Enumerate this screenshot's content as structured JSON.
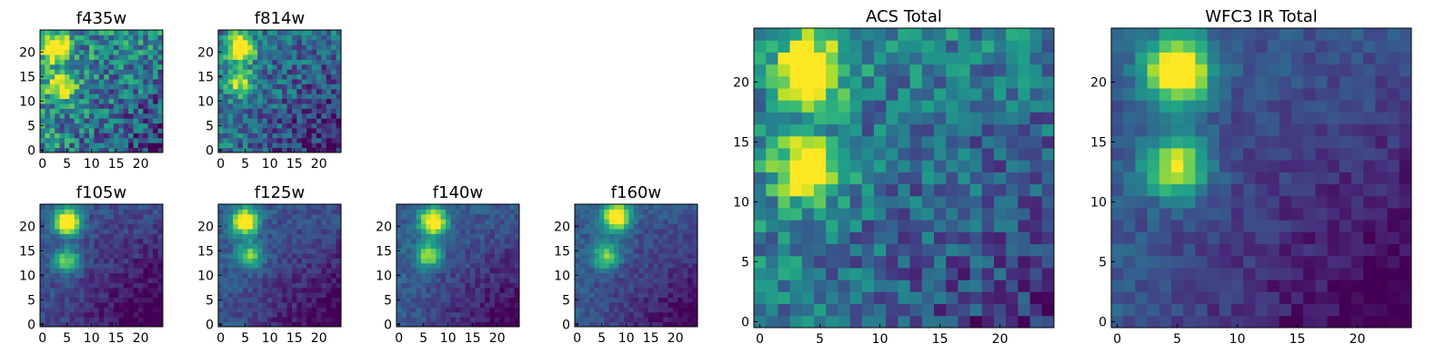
{
  "chart_data": [
    {
      "type": "heatmap",
      "title": "f435w",
      "xticks": [
        0,
        5,
        10,
        15,
        20
      ],
      "yticks": [
        0,
        5,
        10,
        15,
        20
      ],
      "xlim": [
        0,
        24
      ],
      "ylim": [
        0,
        24
      ],
      "colormap": "viridis",
      "peaks": [
        [
          3,
          21,
          0.9
        ],
        [
          4,
          13,
          0.6
        ]
      ],
      "background": 0.5,
      "noise": 0.55
    },
    {
      "type": "heatmap",
      "title": "f814w",
      "xticks": [
        0,
        5,
        10,
        15,
        20
      ],
      "yticks": [
        0,
        5,
        10,
        15,
        20
      ],
      "xlim": [
        0,
        24
      ],
      "ylim": [
        0,
        24
      ],
      "colormap": "viridis",
      "peaks": [
        [
          4,
          21,
          0.95
        ],
        [
          4,
          14,
          0.6
        ]
      ],
      "background": 0.4,
      "noise": 0.45
    },
    {
      "type": "heatmap",
      "title": "f105w",
      "xticks": [
        0,
        5,
        10,
        15,
        20
      ],
      "yticks": [
        0,
        5,
        10,
        15,
        20
      ],
      "xlim": [
        0,
        24
      ],
      "ylim": [
        0,
        24
      ],
      "colormap": "viridis",
      "peaks": [
        [
          5,
          21,
          1.0
        ],
        [
          5,
          13,
          0.6
        ]
      ],
      "background": 0.25,
      "noise": 0.18
    },
    {
      "type": "heatmap",
      "title": "f125w",
      "xticks": [
        0,
        5,
        10,
        15,
        20
      ],
      "yticks": [
        0,
        5,
        10,
        15,
        20
      ],
      "xlim": [
        0,
        24
      ],
      "ylim": [
        0,
        24
      ],
      "colormap": "viridis",
      "peaks": [
        [
          5,
          21,
          0.95
        ],
        [
          6,
          14,
          0.55
        ]
      ],
      "background": 0.28,
      "noise": 0.18
    },
    {
      "type": "heatmap",
      "title": "f140w",
      "xticks": [
        0,
        5,
        10,
        15,
        20
      ],
      "yticks": [
        0,
        5,
        10,
        15,
        20
      ],
      "xlim": [
        0,
        24
      ],
      "ylim": [
        0,
        24
      ],
      "colormap": "viridis",
      "peaks": [
        [
          7,
          21,
          0.95
        ],
        [
          6,
          14,
          0.6
        ]
      ],
      "background": 0.3,
      "noise": 0.18
    },
    {
      "type": "heatmap",
      "title": "f160w",
      "xticks": [
        0,
        5,
        10,
        15,
        20
      ],
      "yticks": [
        0,
        5,
        10,
        15,
        20
      ],
      "xlim": [
        0,
        24
      ],
      "ylim": [
        0,
        24
      ],
      "colormap": "viridis",
      "peaks": [
        [
          8,
          22,
          1.0
        ],
        [
          6,
          14,
          0.55
        ]
      ],
      "background": 0.3,
      "noise": 0.16
    },
    {
      "type": "heatmap",
      "title": "ACS Total",
      "xticks": [
        0,
        5,
        10,
        15,
        20
      ],
      "yticks": [
        0,
        5,
        10,
        15,
        20
      ],
      "xlim": [
        0,
        24
      ],
      "ylim": [
        0,
        24
      ],
      "colormap": "viridis",
      "peaks": [
        [
          4,
          21,
          0.95
        ],
        [
          4,
          13,
          0.75
        ]
      ],
      "background": 0.45,
      "noise": 0.4
    },
    {
      "type": "heatmap",
      "title": "WFC3 IR Total",
      "xticks": [
        0,
        5,
        10,
        15,
        20
      ],
      "yticks": [
        0,
        5,
        10,
        15,
        20
      ],
      "xlim": [
        0,
        24
      ],
      "ylim": [
        0,
        24
      ],
      "colormap": "viridis",
      "peaks": [
        [
          5,
          21,
          1.0
        ],
        [
          5,
          13,
          0.7
        ]
      ],
      "background": 0.28,
      "noise": 0.16
    }
  ]
}
